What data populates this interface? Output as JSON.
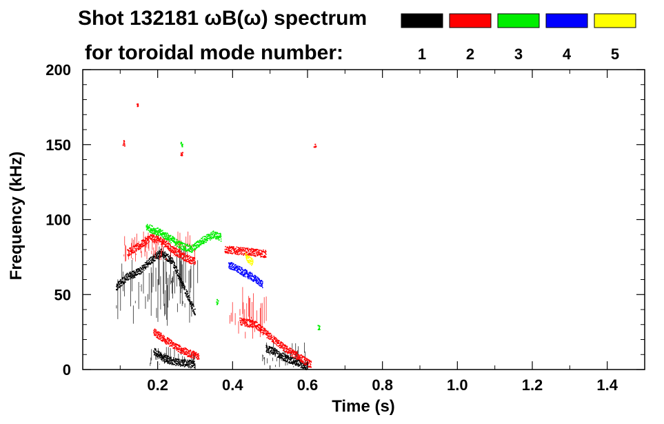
{
  "chart_data": {
    "type": "heatmap",
    "title_line1": "Shot 132181 ωB(ω) spectrum",
    "title_line2": "for toroidal mode number:",
    "xlabel": "Time (s)",
    "ylabel": "Frequency (kHz)",
    "xlim": [
      0.0,
      1.5
    ],
    "ylim": [
      0,
      200
    ],
    "x_ticks": [
      0.2,
      0.4,
      0.6,
      0.8,
      1.0,
      1.2,
      1.4
    ],
    "x_tick_labels": [
      "0.2",
      "0.4",
      "0.6",
      "0.8",
      "1.0",
      "1.2",
      "1.4"
    ],
    "y_ticks": [
      0,
      50,
      100,
      150,
      200
    ],
    "y_tick_labels": [
      "0",
      "50",
      "100",
      "150",
      "200"
    ],
    "legend": [
      {
        "label": "1",
        "color": "#000000"
      },
      {
        "label": "2",
        "color": "#ff0000"
      },
      {
        "label": "3",
        "color": "#00ee00"
      },
      {
        "label": "4",
        "color": "#0000ff"
      },
      {
        "label": "5",
        "color": "#ffff00"
      }
    ],
    "series": [
      {
        "mode": 1,
        "color": "#000000",
        "regions": [
          {
            "t": [
              0.09,
              0.17
            ],
            "f": [
              30,
              75
            ]
          },
          {
            "t": [
              0.17,
              0.31
            ],
            "f": [
              25,
              82
            ]
          },
          {
            "t": [
              0.18,
              0.3
            ],
            "f": [
              2,
              15
            ]
          },
          {
            "t": [
              0.48,
              0.6
            ],
            "f": [
              1,
              18
            ]
          }
        ],
        "traces": [
          {
            "t": [
              0.09,
              0.12,
              0.15,
              0.18,
              0.21,
              0.24,
              0.27,
              0.3
            ],
            "f": [
              55,
              62,
              65,
              72,
              78,
              72,
              55,
              38
            ]
          },
          {
            "t": [
              0.19,
              0.22,
              0.25,
              0.28,
              0.3
            ],
            "f": [
              12,
              7,
              5,
              4,
              3
            ]
          },
          {
            "t": [
              0.49,
              0.51,
              0.54,
              0.57,
              0.6
            ],
            "f": [
              14,
              12,
              8,
              5,
              2
            ]
          }
        ]
      },
      {
        "mode": 2,
        "color": "#ff0000",
        "regions": [
          {
            "t": [
              0.38,
              0.49
            ],
            "f": [
              20,
              55
            ]
          },
          {
            "t": [
              0.11,
              0.3
            ],
            "f": [
              72,
              92
            ]
          }
        ],
        "traces": [
          {
            "t": [
              0.12,
              0.15,
              0.18,
              0.21,
              0.24,
              0.27,
              0.3
            ],
            "f": [
              78,
              82,
              88,
              86,
              80,
              75,
              72
            ]
          },
          {
            "t": [
              0.19,
              0.22,
              0.25,
              0.28,
              0.31
            ],
            "f": [
              25,
              20,
              15,
              11,
              9
            ]
          },
          {
            "t": [
              0.38,
              0.42,
              0.46,
              0.49
            ],
            "f": [
              80,
              79,
              78,
              77
            ]
          },
          {
            "t": [
              0.42,
              0.46,
              0.5,
              0.54,
              0.58,
              0.61
            ],
            "f": [
              32,
              30,
              22,
              14,
              8,
              3
            ]
          }
        ],
        "points": [
          {
            "t": 0.145,
            "f": 176
          },
          {
            "t": 0.11,
            "f": 151
          },
          {
            "t": 0.265,
            "f": 144
          },
          {
            "t": 0.62,
            "f": 149
          }
        ]
      },
      {
        "mode": 3,
        "color": "#00ee00",
        "traces": [
          {
            "t": [
              0.17,
              0.2,
              0.23,
              0.26,
              0.29,
              0.32,
              0.35,
              0.37
            ],
            "f": [
              95,
              92,
              88,
              83,
              80,
              86,
              90,
              88
            ]
          }
        ],
        "points": [
          {
            "t": 0.265,
            "f": 150
          },
          {
            "t": 0.36,
            "f": 45
          },
          {
            "t": 0.63,
            "f": 28
          }
        ]
      },
      {
        "mode": 4,
        "color": "#0000ff",
        "traces": [
          {
            "t": [
              0.39,
              0.42,
              0.45,
              0.48
            ],
            "f": [
              70,
              66,
              62,
              57
            ]
          }
        ]
      },
      {
        "mode": 5,
        "color": "#ffff00",
        "traces": [
          {
            "t": [
              0.435,
              0.445,
              0.455
            ],
            "f": [
              75,
              73,
              71
            ]
          }
        ]
      }
    ]
  }
}
